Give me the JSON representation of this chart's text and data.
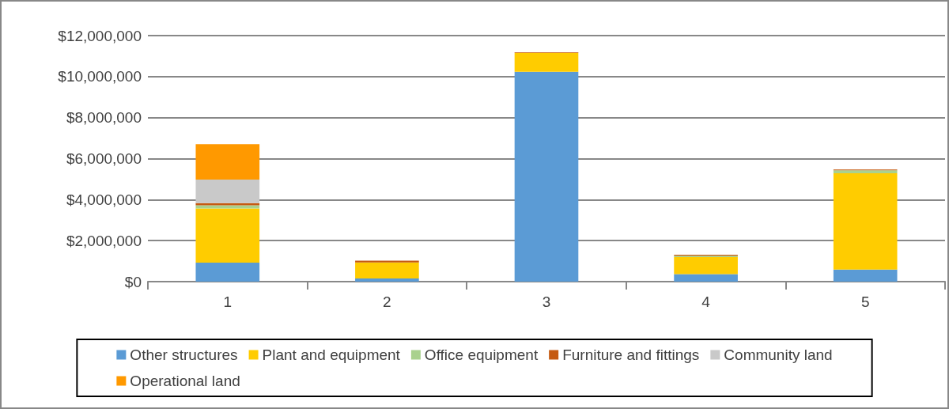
{
  "chart_data": {
    "type": "bar",
    "stacked": true,
    "categories": [
      "1",
      "2",
      "3",
      "4",
      "5"
    ],
    "series": [
      {
        "name": "Other structures",
        "color": "#5b9bd5",
        "values": [
          930000,
          150000,
          10230000,
          370000,
          590000
        ]
      },
      {
        "name": "Plant and equipment",
        "color": "#ffcc00",
        "values": [
          2640000,
          790000,
          930000,
          830000,
          4700000
        ]
      },
      {
        "name": "Office equipment",
        "color": "#a9d18e",
        "values": [
          150000,
          null,
          null,
          60000,
          140000
        ]
      },
      {
        "name": "Furniture and fittings",
        "color": "#c55a11",
        "values": [
          110000,
          80000,
          30000,
          50000,
          40000
        ]
      },
      {
        "name": "Community land",
        "color": "#c9c9c9",
        "values": [
          1150000,
          null,
          null,
          null,
          null
        ]
      },
      {
        "name": "Operational land",
        "color": "#ff9900",
        "values": [
          1720000,
          null,
          null,
          null,
          null
        ]
      }
    ],
    "ylim": [
      0,
      12000000
    ],
    "yticks": [
      {
        "value": 0,
        "label": "$0"
      },
      {
        "value": 2000000,
        "label": "$2,000,000"
      },
      {
        "value": 4000000,
        "label": "$4,000,000"
      },
      {
        "value": 6000000,
        "label": "$6,000,000"
      },
      {
        "value": 8000000,
        "label": "$8,000,000"
      },
      {
        "value": 10000000,
        "label": "$10,000,000"
      },
      {
        "value": 12000000,
        "label": "$12,000,000"
      }
    ],
    "grid": "y",
    "legend": "bottom"
  }
}
